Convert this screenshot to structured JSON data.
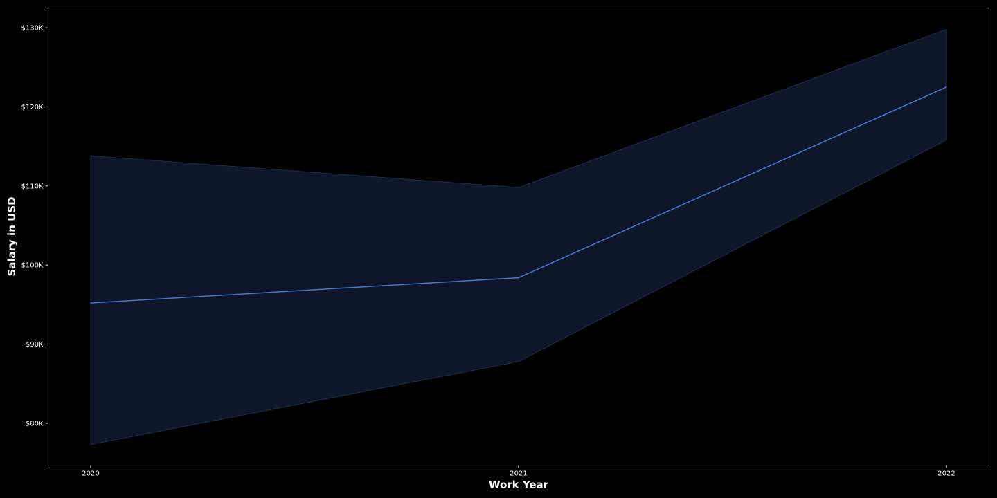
{
  "chart_data": {
    "type": "line",
    "title": "",
    "xlabel": "Work Year",
    "ylabel": "Salary in USD",
    "x": [
      2020,
      2021,
      2022
    ],
    "x_tick_labels": [
      "2020",
      "2021",
      "2022"
    ],
    "y_ticks": [
      80000,
      90000,
      100000,
      110000,
      120000,
      130000
    ],
    "y_tick_labels": [
      "$80K",
      "$90K",
      "$100K",
      "$110K",
      "$120K",
      "$130K"
    ],
    "ylim": [
      74700,
      132500
    ],
    "xlim": [
      2019.9,
      2021.1
    ],
    "series": [
      {
        "values": [
          95200,
          98400,
          122500
        ],
        "ci_lower": [
          77300,
          87800,
          115800
        ],
        "ci_upper": [
          113800,
          109800,
          129800
        ]
      }
    ],
    "grid": false,
    "legend": "none",
    "colors": {
      "background": "#000000",
      "line": "#4a78d0",
      "band": "#0e1729",
      "band_edge": "#1f2f55",
      "axes": "#ffffff",
      "text": "#ffffff"
    }
  }
}
